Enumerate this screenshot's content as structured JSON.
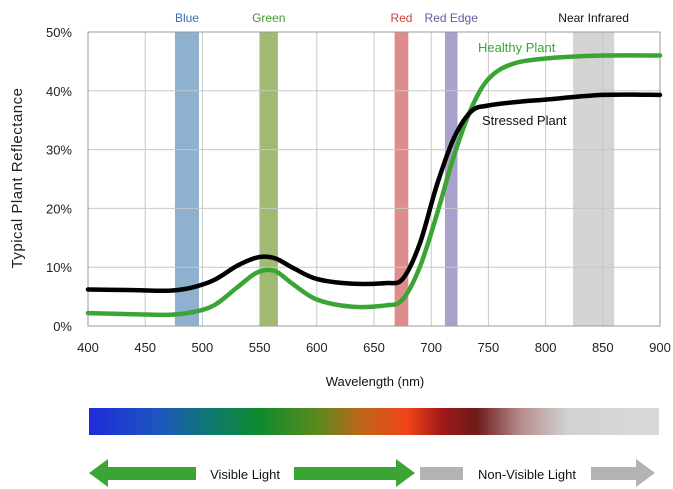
{
  "chart_data": {
    "type": "line",
    "title": "",
    "xlabel": "Wavelength (nm)",
    "ylabel": "Typical Plant Reflectance",
    "xlim": [
      400,
      900
    ],
    "ylim": [
      0,
      50
    ],
    "x_ticks": [
      "400",
      "450",
      "500",
      "550",
      "600",
      "650",
      "700",
      "750",
      "800",
      "850",
      "900"
    ],
    "y_ticks": [
      "0%",
      "10%",
      "20%",
      "30%",
      "40%",
      "50%"
    ],
    "grid": true,
    "series": [
      {
        "name": "Healthy Plant",
        "color": "#3aa535",
        "x": [
          400,
          440,
          470,
          490,
          510,
          530,
          545,
          555,
          565,
          580,
          600,
          630,
          660,
          675,
          690,
          705,
          720,
          735,
          750,
          770,
          800,
          850,
          900
        ],
        "y": [
          2.2,
          2.0,
          1.9,
          2.3,
          3.5,
          6.5,
          8.8,
          9.5,
          9.2,
          7.0,
          4.5,
          3.3,
          3.5,
          4.5,
          10.0,
          19.0,
          29.0,
          37.0,
          42.0,
          44.5,
          45.5,
          46.0,
          46.0
        ]
      },
      {
        "name": "Stressed Plant",
        "color": "#000000",
        "x": [
          400,
          440,
          470,
          490,
          510,
          530,
          545,
          555,
          565,
          580,
          600,
          630,
          660,
          675,
          690,
          705,
          720,
          735,
          750,
          780,
          800,
          850,
          900
        ],
        "y": [
          6.2,
          6.1,
          6.0,
          6.5,
          7.8,
          10.2,
          11.5,
          11.8,
          11.4,
          9.8,
          8.0,
          7.2,
          7.3,
          8.0,
          14.0,
          24.0,
          32.0,
          36.5,
          37.5,
          38.2,
          38.5,
          39.3,
          39.3
        ]
      }
    ],
    "bands": [
      {
        "label": "Blue",
        "from": 476,
        "to": 497,
        "color": "#7aa3c8",
        "text_color": "#3a6fb0"
      },
      {
        "label": "Green",
        "from": 550,
        "to": 566,
        "color": "#8fae5a",
        "text_color": "#3e9a2e"
      },
      {
        "label": "Red",
        "from": 668,
        "to": 680,
        "color": "#d97878",
        "text_color": "#d04040"
      },
      {
        "label": "Red Edge",
        "from": 712,
        "to": 723,
        "color": "#9a8fc2",
        "text_color": "#6a58a8"
      },
      {
        "label": "Near Infrared",
        "from": 824,
        "to": 860,
        "color": "#cccccc",
        "text_color": "#111111"
      }
    ]
  },
  "spectrum_bar": {
    "visible_label": "Visible Light",
    "nonvisible_label": "Non-Visible Light"
  }
}
